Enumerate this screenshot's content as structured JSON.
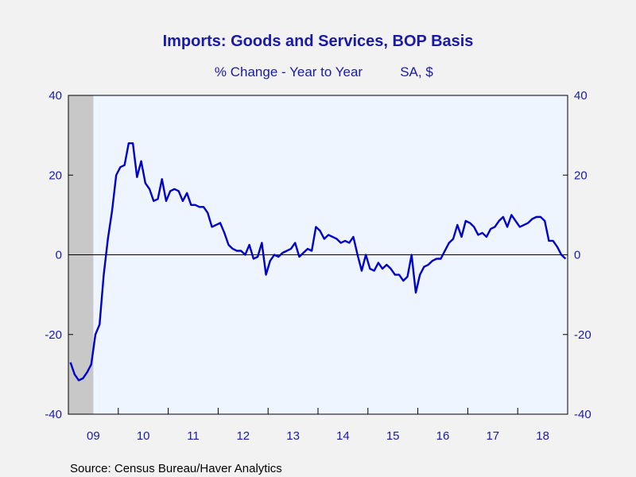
{
  "chart_data": {
    "type": "line",
    "title": "Imports: Goods and Services, BOP Basis",
    "subtitle_left": "% Change - Year to Year",
    "subtitle_right": "SA, $",
    "source": "Source:  Census Bureau/Haver Analytics",
    "ylim": [
      -40,
      40
    ],
    "y_ticks": [
      "40",
      "20",
      "0",
      "-20",
      "-40"
    ],
    "y_tick_values": [
      40,
      20,
      0,
      -20,
      -40
    ],
    "x_start": "2009-01",
    "x_end": "2018-12",
    "x_labels": [
      "09",
      "10",
      "11",
      "12",
      "13",
      "14",
      "15",
      "16",
      "17",
      "18"
    ],
    "recession": {
      "start": "2009-01",
      "end": "2009-06"
    },
    "grid": false,
    "zero_line": true,
    "colors": {
      "line": "#0000c8",
      "plot_bg": "#eef5ff",
      "recession": "#c8c8c8",
      "text": "#1a1aa6"
    },
    "series": [
      {
        "name": "",
        "x": [
          "2009-01",
          "2009-02",
          "2009-03",
          "2009-04",
          "2009-05",
          "2009-06",
          "2009-07",
          "2009-08",
          "2009-09",
          "2009-10",
          "2009-11",
          "2009-12",
          "2010-01",
          "2010-02",
          "2010-03",
          "2010-04",
          "2010-05",
          "2010-06",
          "2010-07",
          "2010-08",
          "2010-09",
          "2010-10",
          "2010-11",
          "2010-12",
          "2011-01",
          "2011-02",
          "2011-03",
          "2011-04",
          "2011-05",
          "2011-06",
          "2011-07",
          "2011-08",
          "2011-09",
          "2011-10",
          "2011-11",
          "2011-12",
          "2012-01",
          "2012-02",
          "2012-03",
          "2012-04",
          "2012-05",
          "2012-06",
          "2012-07",
          "2012-08",
          "2012-09",
          "2012-10",
          "2012-11",
          "2012-12",
          "2013-01",
          "2013-02",
          "2013-03",
          "2013-04",
          "2013-05",
          "2013-06",
          "2013-07",
          "2013-08",
          "2013-09",
          "2013-10",
          "2013-11",
          "2013-12",
          "2014-01",
          "2014-02",
          "2014-03",
          "2014-04",
          "2014-05",
          "2014-06",
          "2014-07",
          "2014-08",
          "2014-09",
          "2014-10",
          "2014-11",
          "2014-12",
          "2015-01",
          "2015-02",
          "2015-03",
          "2015-04",
          "2015-05",
          "2015-06",
          "2015-07",
          "2015-08",
          "2015-09",
          "2015-10",
          "2015-11",
          "2015-12",
          "2016-01",
          "2016-02",
          "2016-03",
          "2016-04",
          "2016-05",
          "2016-06",
          "2016-07",
          "2016-08",
          "2016-09",
          "2016-10",
          "2016-11",
          "2016-12",
          "2017-01",
          "2017-02",
          "2017-03",
          "2017-04",
          "2017-05",
          "2017-06",
          "2017-07",
          "2017-08",
          "2017-09",
          "2017-10",
          "2017-11",
          "2017-12",
          "2018-01",
          "2018-02",
          "2018-03",
          "2018-04",
          "2018-05",
          "2018-06",
          "2018-07",
          "2018-08",
          "2018-09",
          "2018-10",
          "2018-11",
          "2018-12"
        ],
        "values": [
          -27,
          -30,
          -31.5,
          -31,
          -29.5,
          -27.5,
          -20,
          -17.5,
          -5,
          4,
          11,
          20,
          22,
          22.5,
          28,
          28,
          19.5,
          23.5,
          18,
          16.5,
          13.5,
          14,
          19,
          13.5,
          16,
          16.5,
          16,
          13.5,
          15.5,
          12.5,
          12.5,
          12,
          12,
          10.5,
          7,
          7.5,
          8,
          5.5,
          2.5,
          1.5,
          1,
          1,
          0,
          2.5,
          -1,
          -0.5,
          3,
          -5,
          -1.5,
          0,
          -0.5,
          0.5,
          1,
          1.5,
          3,
          -0.5,
          0.5,
          1.5,
          1,
          7,
          6,
          4,
          5,
          4.5,
          4,
          3,
          3.5,
          3,
          4.5,
          0,
          -4,
          0,
          -3.5,
          -4,
          -2,
          -3.5,
          -2.5,
          -3.5,
          -5,
          -5,
          -6.5,
          -5.5,
          0,
          -9.5,
          -5,
          -3,
          -2.5,
          -1.5,
          -1,
          -1,
          1,
          3,
          4,
          7.5,
          4.5,
          8.5,
          8,
          7,
          5,
          5.5,
          4.5,
          6.5,
          7,
          8.5,
          9.5,
          7,
          10,
          8.5,
          7,
          7.5,
          8,
          9,
          9.5,
          9.5,
          8.5,
          3.5,
          3.5,
          2,
          0,
          -1
        ]
      }
    ]
  }
}
